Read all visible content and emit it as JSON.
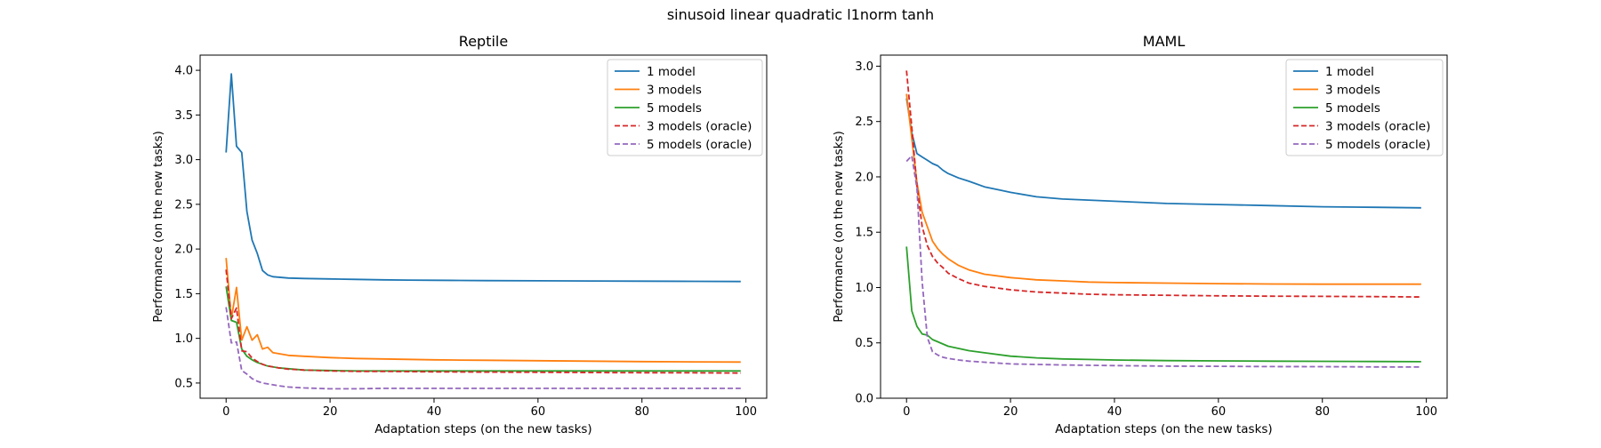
{
  "figure": {
    "suptitle": "sinusoid linear quadratic l1norm tanh"
  },
  "chart_data": [
    {
      "type": "line",
      "title": "Reptile",
      "xlabel": "Adaptation steps (on the new tasks)",
      "ylabel": "Performance (on the new tasks)",
      "xlim": [
        -5,
        104
      ],
      "ylim": [
        0.33,
        4.17
      ],
      "xticks": [
        0,
        20,
        40,
        60,
        80,
        100
      ],
      "yticks": [
        0.5,
        1.0,
        1.5,
        2.0,
        2.5,
        3.0,
        3.5,
        4.0
      ],
      "ytick_labels": [
        "0.5",
        "1.0",
        "1.5",
        "2.0",
        "2.5",
        "3.0",
        "3.5",
        "4.0"
      ],
      "grid": false,
      "legend": "top-right",
      "series": [
        {
          "name": "1 model",
          "color": "#1f77b4",
          "dash": "solid",
          "points": [
            [
              0,
              3.08
            ],
            [
              1,
              3.96
            ],
            [
              2,
              3.15
            ],
            [
              3,
              3.08
            ],
            [
              4,
              2.42
            ],
            [
              5,
              2.1
            ],
            [
              6,
              1.95
            ],
            [
              7,
              1.76
            ],
            [
              8,
              1.71
            ],
            [
              9,
              1.69
            ],
            [
              10,
              1.685
            ],
            [
              12,
              1.675
            ],
            [
              15,
              1.67
            ],
            [
              20,
              1.665
            ],
            [
              25,
              1.66
            ],
            [
              30,
              1.655
            ],
            [
              35,
              1.652
            ],
            [
              40,
              1.65
            ],
            [
              45,
              1.648
            ],
            [
              50,
              1.646
            ],
            [
              60,
              1.644
            ],
            [
              70,
              1.642
            ],
            [
              80,
              1.64
            ],
            [
              90,
              1.638
            ],
            [
              99,
              1.636
            ]
          ]
        },
        {
          "name": "3 models",
          "color": "#ff7f0e",
          "dash": "solid",
          "points": [
            [
              0,
              1.9
            ],
            [
              1,
              1.22
            ],
            [
              2,
              1.57
            ],
            [
              3,
              0.98
            ],
            [
              4,
              1.13
            ],
            [
              5,
              0.98
            ],
            [
              6,
              1.04
            ],
            [
              7,
              0.88
            ],
            [
              8,
              0.9
            ],
            [
              9,
              0.84
            ],
            [
              10,
              0.83
            ],
            [
              12,
              0.81
            ],
            [
              15,
              0.8
            ],
            [
              20,
              0.785
            ],
            [
              25,
              0.775
            ],
            [
              30,
              0.77
            ],
            [
              35,
              0.765
            ],
            [
              40,
              0.76
            ],
            [
              45,
              0.757
            ],
            [
              50,
              0.755
            ],
            [
              60,
              0.75
            ],
            [
              70,
              0.745
            ],
            [
              80,
              0.74
            ],
            [
              90,
              0.737
            ],
            [
              99,
              0.735
            ]
          ]
        },
        {
          "name": "5 models",
          "color": "#2ca02c",
          "dash": "solid",
          "points": [
            [
              0,
              1.58
            ],
            [
              1,
              1.2
            ],
            [
              2,
              1.18
            ],
            [
              3,
              0.88
            ],
            [
              4,
              0.8
            ],
            [
              5,
              0.76
            ],
            [
              6,
              0.73
            ],
            [
              7,
              0.71
            ],
            [
              8,
              0.69
            ],
            [
              10,
              0.67
            ],
            [
              12,
              0.66
            ],
            [
              15,
              0.645
            ],
            [
              20,
              0.64
            ],
            [
              25,
              0.635
            ],
            [
              30,
              0.635
            ],
            [
              40,
              0.635
            ],
            [
              50,
              0.635
            ],
            [
              60,
              0.635
            ],
            [
              70,
              0.635
            ],
            [
              80,
              0.635
            ],
            [
              90,
              0.635
            ],
            [
              99,
              0.635
            ]
          ]
        },
        {
          "name": "3 models (oracle)",
          "color": "#d62728",
          "dash": "dashed",
          "points": [
            [
              0,
              1.77
            ],
            [
              1,
              1.22
            ],
            [
              2,
              1.34
            ],
            [
              3,
              0.86
            ],
            [
              4,
              0.85
            ],
            [
              5,
              0.78
            ],
            [
              6,
              0.74
            ],
            [
              7,
              0.71
            ],
            [
              8,
              0.69
            ],
            [
              10,
              0.67
            ],
            [
              12,
              0.655
            ],
            [
              15,
              0.645
            ],
            [
              20,
              0.635
            ],
            [
              25,
              0.63
            ],
            [
              30,
              0.63
            ],
            [
              40,
              0.625
            ],
            [
              50,
              0.622
            ],
            [
              60,
              0.62
            ],
            [
              70,
              0.618
            ],
            [
              80,
              0.616
            ],
            [
              90,
              0.615
            ],
            [
              99,
              0.612
            ]
          ]
        },
        {
          "name": "5 models (oracle)",
          "color": "#9467bd",
          "dash": "dashed",
          "points": [
            [
              0,
              1.35
            ],
            [
              1,
              0.95
            ],
            [
              2,
              0.96
            ],
            [
              3,
              0.64
            ],
            [
              4,
              0.6
            ],
            [
              5,
              0.55
            ],
            [
              6,
              0.52
            ],
            [
              7,
              0.5
            ],
            [
              8,
              0.49
            ],
            [
              10,
              0.47
            ],
            [
              12,
              0.455
            ],
            [
              15,
              0.445
            ],
            [
              20,
              0.435
            ],
            [
              25,
              0.435
            ],
            [
              30,
              0.44
            ],
            [
              35,
              0.44
            ],
            [
              40,
              0.44
            ],
            [
              50,
              0.44
            ],
            [
              60,
              0.44
            ],
            [
              70,
              0.44
            ],
            [
              80,
              0.44
            ],
            [
              90,
              0.44
            ],
            [
              99,
              0.44
            ]
          ]
        }
      ]
    },
    {
      "type": "line",
      "title": "MAML",
      "xlabel": "Adaptation steps (on the new tasks)",
      "ylabel": "Performance (on the new tasks)",
      "xlim": [
        -5,
        104
      ],
      "ylim": [
        0,
        3.1
      ],
      "xticks": [
        0,
        20,
        40,
        60,
        80,
        100
      ],
      "yticks": [
        0.0,
        0.5,
        1.0,
        1.5,
        2.0,
        2.5,
        3.0
      ],
      "ytick_labels": [
        "0.0",
        "0.5",
        "1.0",
        "1.5",
        "2.0",
        "2.5",
        "3.0"
      ],
      "grid": false,
      "legend": "top-right",
      "series": [
        {
          "name": "1 model",
          "color": "#1f77b4",
          "dash": "solid",
          "points": [
            [
              0,
              2.71
            ],
            [
              1,
              2.4
            ],
            [
              2,
              2.21
            ],
            [
              3,
              2.18
            ],
            [
              4,
              2.15
            ],
            [
              5,
              2.12
            ],
            [
              6,
              2.1
            ],
            [
              7,
              2.06
            ],
            [
              8,
              2.03
            ],
            [
              10,
              1.99
            ],
            [
              12,
              1.96
            ],
            [
              15,
              1.91
            ],
            [
              18,
              1.88
            ],
            [
              20,
              1.86
            ],
            [
              25,
              1.82
            ],
            [
              30,
              1.8
            ],
            [
              35,
              1.79
            ],
            [
              40,
              1.78
            ],
            [
              45,
              1.77
            ],
            [
              50,
              1.76
            ],
            [
              60,
              1.75
            ],
            [
              70,
              1.74
            ],
            [
              80,
              1.73
            ],
            [
              90,
              1.725
            ],
            [
              99,
              1.72
            ]
          ]
        },
        {
          "name": "3 models",
          "color": "#ff7f0e",
          "dash": "solid",
          "points": [
            [
              0,
              2.75
            ],
            [
              1,
              2.35
            ],
            [
              2,
              1.95
            ],
            [
              3,
              1.68
            ],
            [
              4,
              1.55
            ],
            [
              5,
              1.42
            ],
            [
              6,
              1.35
            ],
            [
              7,
              1.3
            ],
            [
              8,
              1.26
            ],
            [
              10,
              1.2
            ],
            [
              12,
              1.16
            ],
            [
              15,
              1.12
            ],
            [
              20,
              1.09
            ],
            [
              25,
              1.07
            ],
            [
              30,
              1.06
            ],
            [
              35,
              1.05
            ],
            [
              40,
              1.045
            ],
            [
              50,
              1.04
            ],
            [
              60,
              1.035
            ],
            [
              70,
              1.032
            ],
            [
              80,
              1.03
            ],
            [
              90,
              1.03
            ],
            [
              99,
              1.03
            ]
          ]
        },
        {
          "name": "5 models",
          "color": "#2ca02c",
          "dash": "solid",
          "points": [
            [
              0,
              1.37
            ],
            [
              1,
              0.79
            ],
            [
              2,
              0.65
            ],
            [
              3,
              0.58
            ],
            [
              4,
              0.57
            ],
            [
              5,
              0.53
            ],
            [
              6,
              0.51
            ],
            [
              7,
              0.49
            ],
            [
              8,
              0.47
            ],
            [
              10,
              0.45
            ],
            [
              12,
              0.43
            ],
            [
              15,
              0.41
            ],
            [
              20,
              0.38
            ],
            [
              25,
              0.365
            ],
            [
              30,
              0.355
            ],
            [
              35,
              0.35
            ],
            [
              40,
              0.345
            ],
            [
              50,
              0.34
            ],
            [
              60,
              0.337
            ],
            [
              70,
              0.335
            ],
            [
              80,
              0.333
            ],
            [
              90,
              0.332
            ],
            [
              99,
              0.33
            ]
          ]
        },
        {
          "name": "3 models (oracle)",
          "color": "#d62728",
          "dash": "dashed",
          "points": [
            [
              0,
              2.96
            ],
            [
              1,
              2.45
            ],
            [
              2,
              1.92
            ],
            [
              3,
              1.55
            ],
            [
              4,
              1.38
            ],
            [
              5,
              1.28
            ],
            [
              6,
              1.22
            ],
            [
              7,
              1.18
            ],
            [
              8,
              1.13
            ],
            [
              10,
              1.08
            ],
            [
              12,
              1.04
            ],
            [
              15,
              1.01
            ],
            [
              20,
              0.98
            ],
            [
              25,
              0.96
            ],
            [
              30,
              0.95
            ],
            [
              35,
              0.94
            ],
            [
              40,
              0.935
            ],
            [
              50,
              0.93
            ],
            [
              60,
              0.925
            ],
            [
              70,
              0.922
            ],
            [
              80,
              0.92
            ],
            [
              90,
              0.918
            ],
            [
              99,
              0.915
            ]
          ]
        },
        {
          "name": "5 models (oracle)",
          "color": "#9467bd",
          "dash": "dashed",
          "points": [
            [
              0,
              2.14
            ],
            [
              1,
              2.19
            ],
            [
              2,
              1.9
            ],
            [
              3,
              1.05
            ],
            [
              4,
              0.55
            ],
            [
              5,
              0.42
            ],
            [
              6,
              0.39
            ],
            [
              7,
              0.37
            ],
            [
              8,
              0.36
            ],
            [
              10,
              0.345
            ],
            [
              12,
              0.335
            ],
            [
              15,
              0.325
            ],
            [
              20,
              0.31
            ],
            [
              25,
              0.305
            ],
            [
              30,
              0.3
            ],
            [
              40,
              0.295
            ],
            [
              50,
              0.29
            ],
            [
              60,
              0.288
            ],
            [
              70,
              0.286
            ],
            [
              80,
              0.285
            ],
            [
              90,
              0.283
            ],
            [
              99,
              0.282
            ]
          ]
        }
      ]
    }
  ]
}
